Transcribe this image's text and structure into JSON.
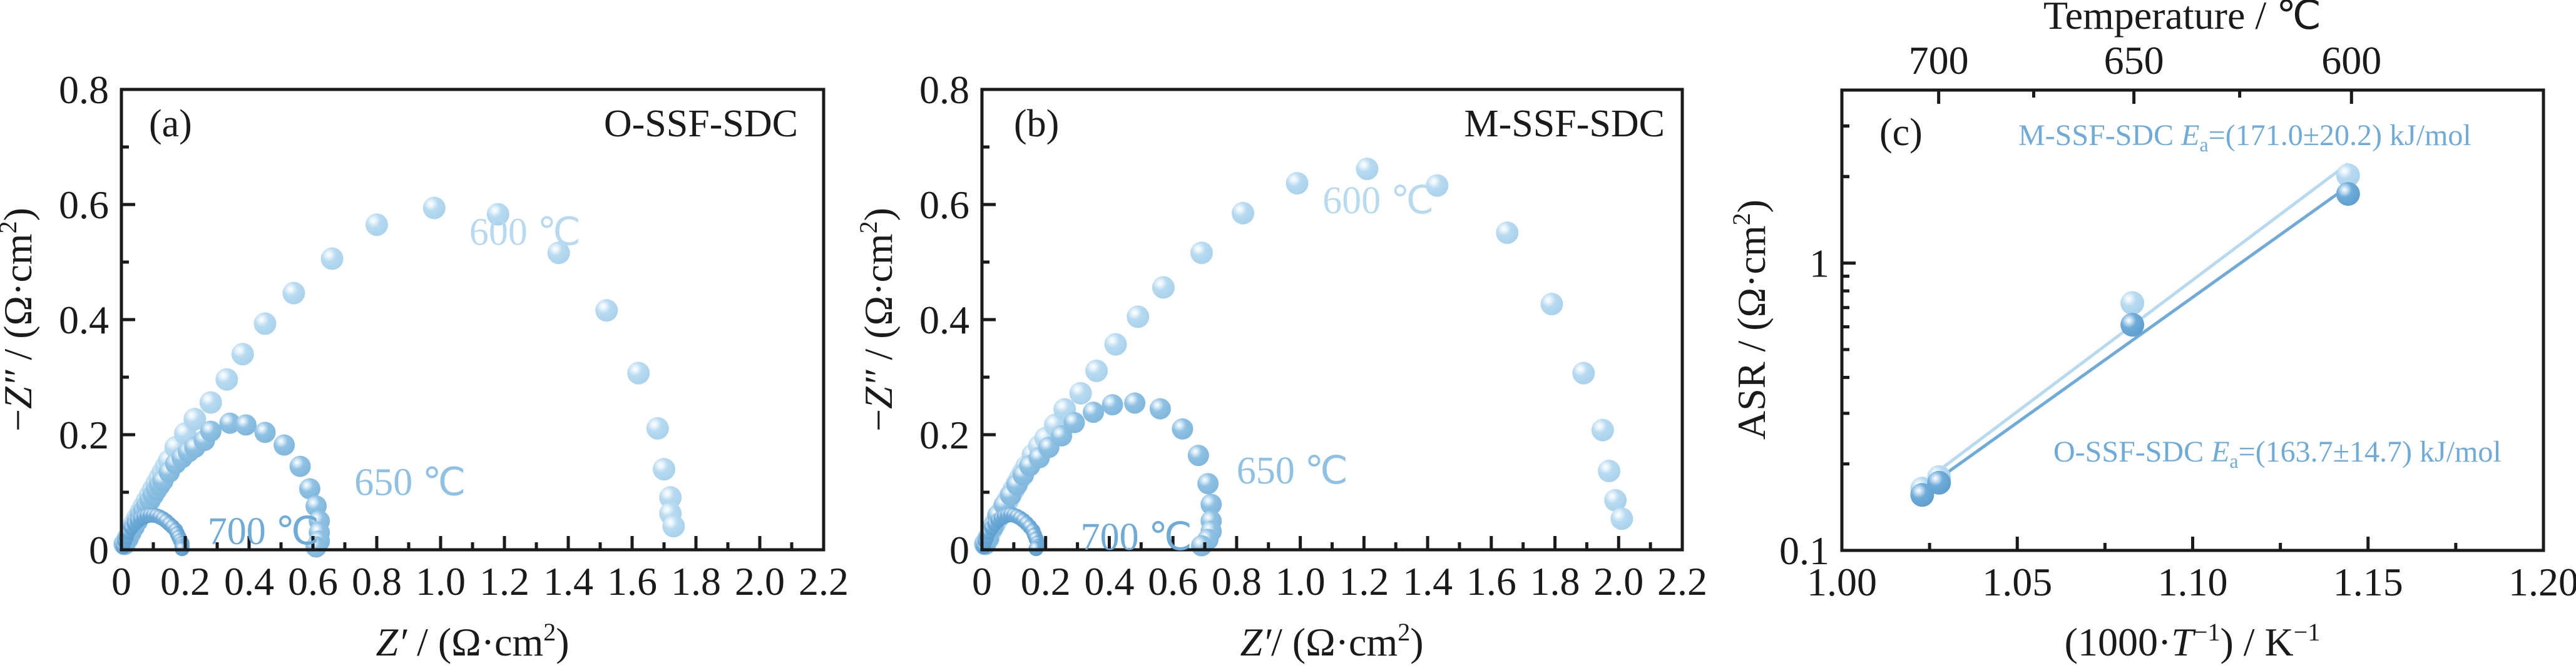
{
  "figure": {
    "colors": {
      "t600": "#b7daf0",
      "t650": "#8ec1e3",
      "t700": "#6eabd8",
      "m_series": "#b7daf0",
      "o_series": "#6eabd8",
      "annotation_text": "#6eabd8",
      "axis": "#1a1a1a"
    }
  },
  "chart_data": [
    {
      "id": "a",
      "type": "scatter",
      "panel_tag": "(a)",
      "sample": "O-SSF-SDC",
      "title": "",
      "xlabel_italic": "Z′",
      "xlabel_rest": " / (Ω·cm",
      "xlabel_sup": "2",
      "xlabel_close": ")",
      "ylabel_prefix": "−",
      "ylabel_italic": "Z″",
      "ylabel_rest": " / (Ω·cm",
      "ylabel_sup": "2",
      "ylabel_close": ")",
      "xlim": [
        0,
        2.2
      ],
      "ylim": [
        0,
        0.8
      ],
      "xticks": [
        "0",
        "0.2",
        "0.4",
        "0.6",
        "0.8",
        "1.0",
        "1.2",
        "1.4",
        "1.6",
        "1.8",
        "2.0",
        "2.2"
      ],
      "xtick_values": [
        0,
        0.2,
        0.4,
        0.6,
        0.8,
        1.0,
        1.2,
        1.4,
        1.6,
        1.8,
        2.0,
        2.2
      ],
      "yticks": [
        "0",
        "0.2",
        "0.4",
        "0.6",
        "0.8"
      ],
      "ytick_values": [
        0,
        0.2,
        0.4,
        0.6,
        0.8
      ],
      "series": [
        {
          "name": "600 ℃",
          "color_key": "t600",
          "label_at": [
            1.09,
            0.53
          ],
          "x": [
            0.01,
            0.02,
            0.03,
            0.04,
            0.05,
            0.06,
            0.07,
            0.08,
            0.09,
            0.1,
            0.11,
            0.12,
            0.13,
            0.14,
            0.15,
            0.17,
            0.2,
            0.23,
            0.28,
            0.33,
            0.38,
            0.45,
            0.54,
            0.66,
            0.8,
            0.98,
            1.18,
            1.37,
            1.52,
            1.62,
            1.68,
            1.7,
            1.72,
            1.72,
            1.73
          ],
          "y": [
            0.01,
            0.02,
            0.035,
            0.045,
            0.055,
            0.065,
            0.075,
            0.085,
            0.095,
            0.105,
            0.115,
            0.125,
            0.135,
            0.145,
            0.155,
            0.178,
            0.202,
            0.227,
            0.256,
            0.296,
            0.34,
            0.393,
            0.446,
            0.506,
            0.565,
            0.594,
            0.583,
            0.516,
            0.416,
            0.307,
            0.211,
            0.14,
            0.091,
            0.063,
            0.041
          ]
        },
        {
          "name": "650 ℃",
          "color_key": "t650",
          "label_at": [
            0.73,
            0.095
          ],
          "x": [
            0.01,
            0.02,
            0.03,
            0.04,
            0.05,
            0.06,
            0.07,
            0.08,
            0.09,
            0.1,
            0.11,
            0.12,
            0.13,
            0.15,
            0.17,
            0.19,
            0.21,
            0.23,
            0.26,
            0.28,
            0.34,
            0.39,
            0.45,
            0.51,
            0.56,
            0.59,
            0.61,
            0.62,
            0.62,
            0.62,
            0.61
          ],
          "y": [
            0.01,
            0.02,
            0.03,
            0.04,
            0.05,
            0.06,
            0.068,
            0.077,
            0.086,
            0.095,
            0.104,
            0.112,
            0.12,
            0.135,
            0.15,
            0.16,
            0.17,
            0.178,
            0.19,
            0.206,
            0.22,
            0.217,
            0.204,
            0.182,
            0.145,
            0.106,
            0.076,
            0.05,
            0.03,
            0.015,
            0.005
          ]
        },
        {
          "name": "700 ℃",
          "color_key": "t700",
          "label_at": [
            0.27,
            0.01
          ],
          "x": [
            0.005,
            0.01,
            0.015,
            0.02,
            0.03,
            0.04,
            0.05,
            0.06,
            0.07,
            0.08,
            0.09,
            0.1,
            0.11,
            0.12,
            0.13,
            0.14,
            0.15,
            0.16,
            0.17,
            0.175,
            0.18,
            0.185,
            0.19,
            0.19,
            0.19
          ],
          "y": [
            0.005,
            0.015,
            0.022,
            0.03,
            0.038,
            0.045,
            0.05,
            0.054,
            0.057,
            0.059,
            0.06,
            0.06,
            0.059,
            0.057,
            0.054,
            0.05,
            0.045,
            0.04,
            0.034,
            0.028,
            0.022,
            0.016,
            0.011,
            0.006,
            0.002
          ]
        }
      ]
    },
    {
      "id": "b",
      "type": "scatter",
      "panel_tag": "(b)",
      "sample": "M-SSF-SDC",
      "title": "",
      "xlabel_italic": "Z′",
      "xlabel_rest": "/ (Ω·cm",
      "xlabel_sup": "2",
      "xlabel_close": ")",
      "ylabel_prefix": "−",
      "ylabel_italic": "Z″",
      "ylabel_rest": " / (Ω·cm",
      "ylabel_sup": "2",
      "ylabel_close": ")",
      "xlim": [
        0,
        2.2
      ],
      "ylim": [
        0,
        0.8
      ],
      "xticks": [
        "0",
        "0.2",
        "0.4",
        "0.6",
        "0.8",
        "1.0",
        "1.2",
        "1.4",
        "1.6",
        "1.8",
        "2.0",
        "2.2"
      ],
      "xtick_values": [
        0,
        0.2,
        0.4,
        0.6,
        0.8,
        1.0,
        1.2,
        1.4,
        1.6,
        1.8,
        2.0,
        2.2
      ],
      "yticks": [
        "0",
        "0.2",
        "0.4",
        "0.6",
        "0.8"
      ],
      "ytick_values": [
        0,
        0.2,
        0.4,
        0.6,
        0.8
      ],
      "series": [
        {
          "name": "600 ℃",
          "color_key": "t600",
          "label_at": [
            1.07,
            0.585
          ],
          "x": [
            0.01,
            0.02,
            0.03,
            0.04,
            0.05,
            0.06,
            0.07,
            0.08,
            0.09,
            0.1,
            0.11,
            0.12,
            0.13,
            0.14,
            0.16,
            0.18,
            0.2,
            0.23,
            0.26,
            0.31,
            0.36,
            0.42,
            0.49,
            0.57,
            0.69,
            0.82,
            0.99,
            1.21,
            1.43,
            1.65,
            1.79,
            1.89,
            1.95,
            1.97,
            1.99,
            2.01
          ],
          "y": [
            0.01,
            0.02,
            0.035,
            0.045,
            0.055,
            0.065,
            0.075,
            0.085,
            0.095,
            0.105,
            0.115,
            0.125,
            0.135,
            0.145,
            0.165,
            0.18,
            0.194,
            0.217,
            0.244,
            0.272,
            0.311,
            0.357,
            0.405,
            0.456,
            0.516,
            0.585,
            0.637,
            0.662,
            0.633,
            0.551,
            0.427,
            0.307,
            0.208,
            0.137,
            0.086,
            0.054
          ]
        },
        {
          "name": "650 ℃",
          "color_key": "t650",
          "label_at": [
            0.8,
            0.115
          ],
          "x": [
            0.01,
            0.02,
            0.035,
            0.05,
            0.07,
            0.09,
            0.11,
            0.13,
            0.15,
            0.18,
            0.21,
            0.25,
            0.29,
            0.35,
            0.41,
            0.48,
            0.56,
            0.63,
            0.68,
            0.71,
            0.72,
            0.72,
            0.72,
            0.71,
            0.69
          ],
          "y": [
            0.01,
            0.02,
            0.04,
            0.06,
            0.078,
            0.095,
            0.113,
            0.13,
            0.146,
            0.16,
            0.178,
            0.198,
            0.221,
            0.239,
            0.252,
            0.255,
            0.245,
            0.21,
            0.164,
            0.115,
            0.079,
            0.05,
            0.032,
            0.018,
            0.007
          ]
        },
        {
          "name": "700 ℃",
          "color_key": "t700",
          "label_at": [
            0.31,
            0.0
          ],
          "x": [
            0.005,
            0.01,
            0.015,
            0.02,
            0.03,
            0.04,
            0.05,
            0.06,
            0.07,
            0.08,
            0.09,
            0.1,
            0.11,
            0.12,
            0.13,
            0.14,
            0.15,
            0.16,
            0.165,
            0.17,
            0.175,
            0.175,
            0.17
          ],
          "y": [
            0.005,
            0.015,
            0.022,
            0.03,
            0.038,
            0.045,
            0.051,
            0.055,
            0.058,
            0.06,
            0.061,
            0.06,
            0.058,
            0.055,
            0.051,
            0.046,
            0.04,
            0.033,
            0.026,
            0.019,
            0.012,
            0.006,
            0.002
          ]
        }
      ]
    },
    {
      "id": "c",
      "type": "scatter",
      "panel_tag": "(c)",
      "title": "",
      "xlabel_pre": "(1000·",
      "xlabel_italic": "T",
      "xlabel_sup": "−1",
      "xlabel_post": ") / K",
      "xlabel_post_sup": "−1",
      "ylabel": "ASR / (Ω·cm",
      "ylabel_sup": "2",
      "ylabel_close": ")",
      "top_axis_title": "Temperature / ℃",
      "top_ticks": [
        "700",
        "650",
        "600"
      ],
      "top_tick_celsius": [
        700,
        650,
        600
      ],
      "top_minor_celsius": [
        675,
        625
      ],
      "xlim": [
        1.0,
        1.2
      ],
      "ylim": [
        0.1,
        4
      ],
      "yscale": "log",
      "xticks": [
        "1.00",
        "1.05",
        "1.10",
        "1.15",
        "1.20"
      ],
      "xtick_values": [
        1.0,
        1.05,
        1.1,
        1.15,
        1.2
      ],
      "yticks": [
        "0.1",
        "1"
      ],
      "ytick_values": [
        0.1,
        1
      ],
      "series": [
        {
          "name": "M-SSF-SDC",
          "color_key": "m_series",
          "annotation_pre": "M-SSF-SDC ",
          "annotation_E": "E",
          "annotation_sub": "a",
          "annotation_post": "=(171.0±20.2) kJ/mol",
          "x": [
            1.0229,
            1.0277,
            1.0828,
            1.1443
          ],
          "y": [
            0.164,
            0.18,
            0.726,
            2.02
          ],
          "fit": {
            "x": [
              1.0277,
              1.1443
            ],
            "y": [
              0.19,
              2.22
            ]
          }
        },
        {
          "name": "O-SSF-SDC",
          "color_key": "o_series",
          "annotation_pre": "O-SSF-SDC  ",
          "annotation_E": "E",
          "annotation_sub": "a",
          "annotation_post": "=(163.7±14.7) kJ/mol",
          "x": [
            1.0229,
            1.0277,
            1.0828,
            1.1443
          ],
          "y": [
            0.156,
            0.172,
            0.61,
            1.74
          ],
          "fit": {
            "x": [
              1.0277,
              1.1443
            ],
            "y": [
              0.178,
              1.85
            ]
          }
        }
      ]
    }
  ]
}
